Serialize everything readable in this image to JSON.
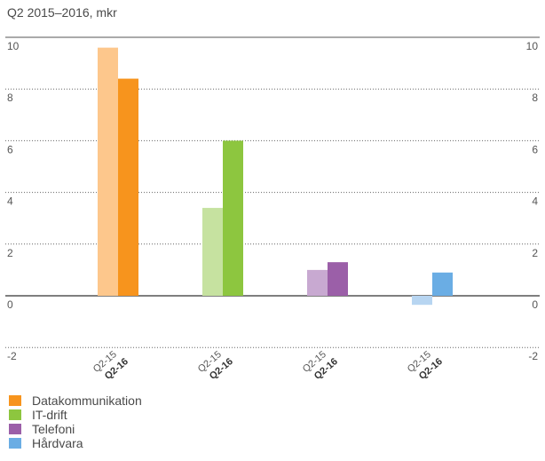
{
  "chart_data": {
    "type": "bar",
    "title": "Q2 2015–2016, mkr",
    "ylim": [
      -2,
      10
    ],
    "yticks": [
      -2,
      0,
      2,
      4,
      6,
      8,
      10
    ],
    "grid": true,
    "groups": [
      {
        "name": "Datakommunikation",
        "color": "#f7941d",
        "light": "#fdc78c",
        "values": {
          "Q2-15": 9.6,
          "Q2-16": 8.4
        }
      },
      {
        "name": "IT-drift",
        "color": "#8dc63f",
        "light": "#c6e2a0",
        "values": {
          "Q2-15": 3.4,
          "Q2-16": 6.0
        }
      },
      {
        "name": "Telefoni",
        "color": "#9b5fa8",
        "light": "#c8a9d1",
        "values": {
          "Q2-15": 1.0,
          "Q2-16": 1.3
        }
      },
      {
        "name": "Hårdvara",
        "color": "#6aade4",
        "light": "#b7d5f1",
        "values": {
          "Q2-15": -0.35,
          "Q2-16": 0.9
        }
      }
    ],
    "category_labels": {
      "prev": "Q2-15",
      "curr": "Q2-16"
    }
  }
}
